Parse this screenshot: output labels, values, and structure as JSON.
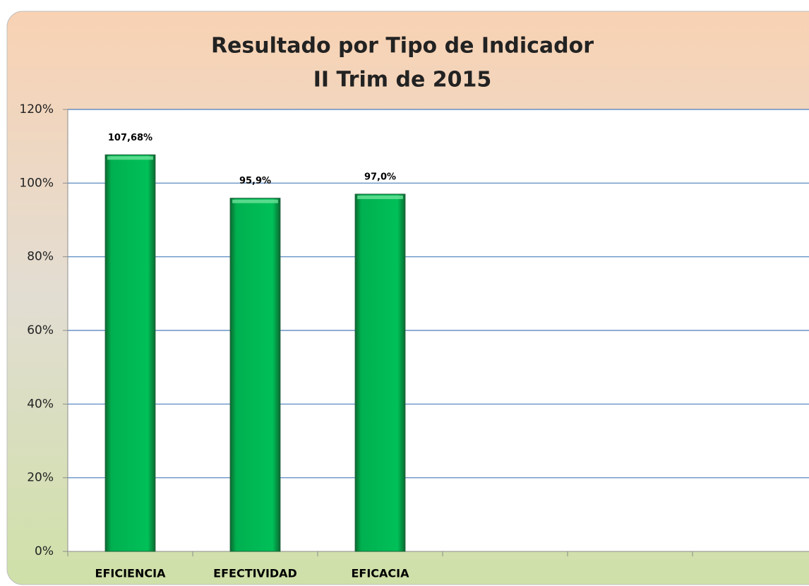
{
  "chart_data": {
    "type": "bar",
    "title": [
      "Resultado por Tipo de Indicador",
      "II Trim de 2015"
    ],
    "categories": [
      "EFICIENCIA",
      "EFECTIVIDAD",
      "EFICACIA",
      null,
      null,
      null
    ],
    "values": [
      107.68,
      95.9,
      97.0,
      null,
      null,
      null
    ],
    "value_labels": [
      "107,68%",
      "95,9%",
      "97,0%",
      null,
      null,
      null
    ],
    "color": "#00b050",
    "ylim": [
      0,
      120
    ],
    "yticks": [
      {
        "value": 0,
        "label": "0%"
      },
      {
        "value": 20,
        "label": "20%"
      },
      {
        "value": 40,
        "label": "40%"
      },
      {
        "value": 60,
        "label": "60%"
      },
      {
        "value": 80,
        "label": "80%"
      },
      {
        "value": 100,
        "label": "100%"
      },
      {
        "value": 120,
        "label": "120%"
      }
    ],
    "grid": true
  }
}
